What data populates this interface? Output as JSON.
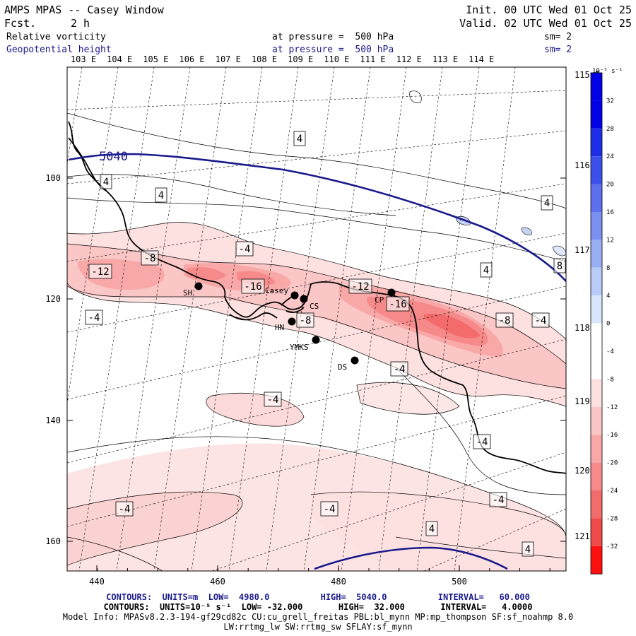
{
  "header": {
    "title": "AMPS MPAS -- Casey Window",
    "fcst_label": "Fcst.",
    "fcst_value": "2 h",
    "init": "Init. 00 UTC Wed 01 Oct 25",
    "valid": "Valid. 02 UTC Wed 01 Oct 25",
    "field1": "Relative vorticity",
    "field1_level": "at pressure =  500 hPa",
    "field1_sm": "sm= 2",
    "field2": "Geopotential height",
    "field2_level": "at pressure =  500 hPa",
    "field2_sm": "sm= 2"
  },
  "longitude_labels_top": [
    "103 E",
    "104 E",
    "105 E",
    "106 E",
    "107 E",
    "108 E",
    "109 E",
    "110 E",
    "111 E",
    "112 E",
    "113 E",
    "114 E"
  ],
  "longitude_labels_right": [
    "115 E",
    "116 E",
    "117 E",
    "118 E",
    "119 E",
    "120 E",
    "121 E"
  ],
  "x_axis_labels": [
    "440",
    "460",
    "480",
    "500"
  ],
  "y_axis_labels": [
    "100",
    "120",
    "140",
    "160"
  ],
  "colorbar": {
    "unit": "10⁻⁵ s⁻¹",
    "labels": [
      "32",
      "28",
      "24",
      "20",
      "16",
      "12",
      "8",
      "4",
      "0",
      "-4",
      "-8",
      "-12",
      "-16",
      "-20",
      "-24",
      "-28",
      "-32"
    ],
    "colors": [
      "#0000e6",
      "#1e2ee8",
      "#3d4feb",
      "#5c6fee",
      "#7b8ff1",
      "#9aaef4",
      "#b9ccf8",
      "#d8e6fb",
      "#ffffff",
      "#ffffff",
      "#fde0e0",
      "#fbc6c6",
      "#f9a8a8",
      "#f68a8a",
      "#f36b6b",
      "#f04a4a",
      "#ff1010"
    ]
  },
  "stations": [
    {
      "label": "SH"
    },
    {
      "label": "Casey"
    },
    {
      "label": "CS"
    },
    {
      "label": "HN"
    },
    {
      "label": "YMKS"
    },
    {
      "label": "DS"
    },
    {
      "label": "CP"
    }
  ],
  "height_contour_label": "5040",
  "vorticity_labels": [
    "4",
    "4",
    "4",
    "4",
    "-4",
    "-8",
    "-12",
    "-16",
    "-12",
    "-16",
    "-8",
    "-8",
    "-4",
    "-4",
    "4",
    "-4",
    "8",
    "-4",
    "-4",
    "-4",
    "-4",
    "4",
    "-4",
    "4"
  ],
  "footer": {
    "line1": "CONTOURS:  UNITS=m  LOW=  4980.0          HIGH=  5040.0          INTERVAL=   60.000",
    "line2": "CONTOURS:  UNITS=10⁻⁵ s⁻¹  LOW= -32.000       HIGH=  32.000       INTERVAL=   4.0000",
    "line3": "Model Info: MPASv8.2.3-194-gf29cd82c CU:cu_grell_freitas PBL:bl_mynn MP:mp_thompson SF:sf_noahmp 8.0",
    "line4": "LW:rrtmg_lw SW:rrtmg_sw SFLAY:sf_mynn"
  }
}
